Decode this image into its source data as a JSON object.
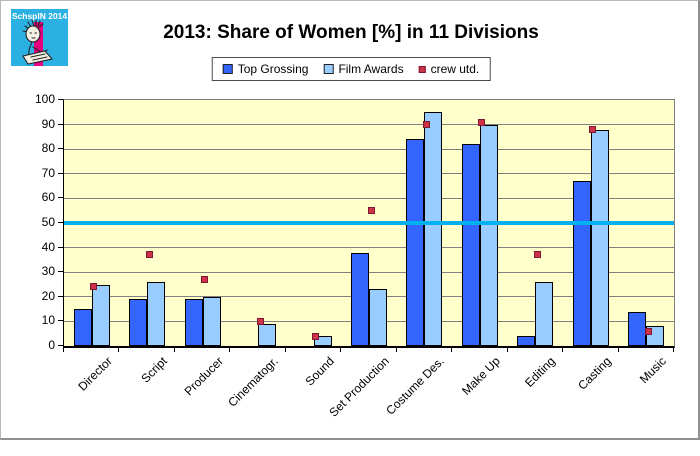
{
  "logo": {
    "text": "SchspIN 2014",
    "bg_color": "#2ab1e2",
    "stripe_color": "#e6007e"
  },
  "header": {
    "title": "2013: Share of Women [%] in 11 Divisions"
  },
  "legend": {
    "items": [
      {
        "label": "Top Grossing",
        "color": "#3366ff"
      },
      {
        "label": "Film Awards",
        "color": "#99ccff"
      },
      {
        "label": "crew utd.",
        "color": "#cc3347"
      }
    ]
  },
  "chart_data": {
    "type": "bar",
    "title": "2013: Share of Women [%] in 11 Divisions",
    "categories": [
      "Director",
      "Script",
      "Producer",
      "Cinematogr.",
      "Sound",
      "Set Production",
      "Costume Des.",
      "Make Up",
      "Editing",
      "Casting",
      "Music"
    ],
    "series": [
      {
        "name": "Top Grossing",
        "type": "bar",
        "color": "#3366ff",
        "values": [
          15,
          19,
          19,
          0,
          0,
          38,
          84,
          82,
          4,
          67,
          14
        ]
      },
      {
        "name": "Film Awards",
        "type": "bar",
        "color": "#99ccff",
        "values": [
          25,
          26,
          20,
          9,
          4,
          23,
          95,
          90,
          26,
          88,
          8
        ]
      },
      {
        "name": "crew utd.",
        "type": "point",
        "color": "#cc3347",
        "values": [
          24,
          37,
          27,
          10,
          4,
          55,
          90,
          91,
          37,
          88,
          6
        ]
      }
    ],
    "xlabel": "",
    "ylabel": "",
    "ylim": [
      0,
      100
    ],
    "ytick_step": 10,
    "grid": true,
    "gridline_color": "#808080",
    "plot_bg_color": "#ffffcc",
    "reference_line": {
      "value": 50,
      "color": "#00b0f0"
    },
    "legend_position": "top"
  }
}
